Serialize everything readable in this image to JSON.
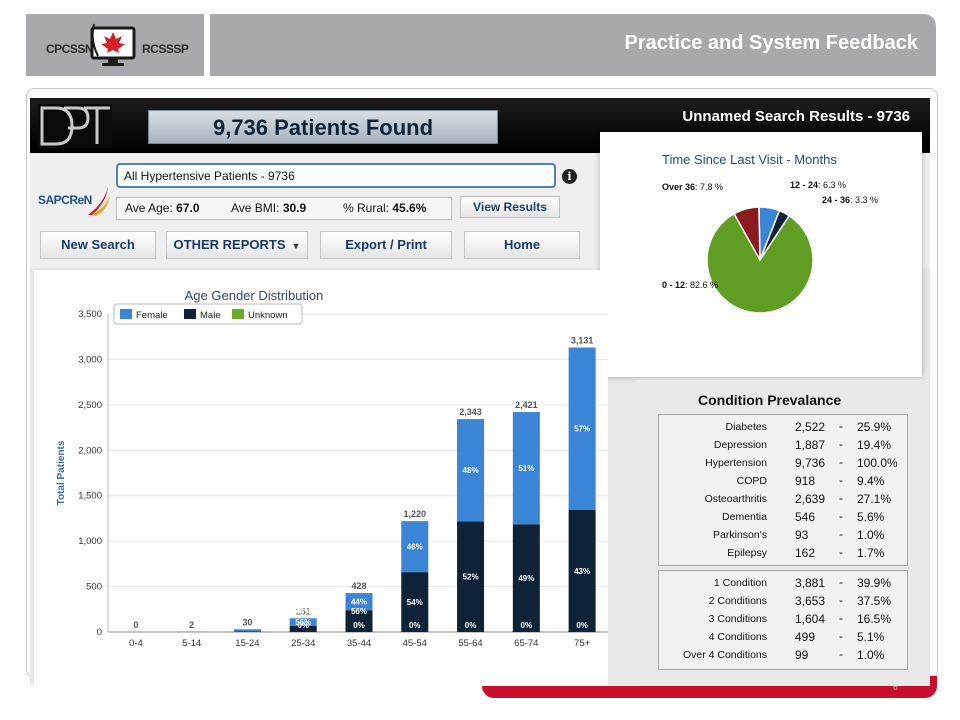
{
  "slide": {
    "logo_left": "CPCSSN",
    "logo_right": "RCSSSP",
    "title": "Practice and System Feedback",
    "page_number": "6"
  },
  "app": {
    "logo": "DPT",
    "patients_found": "9,736 Patients Found",
    "results_title": "Unnamed Search Results - 9736",
    "partner_logo": "SAPCReN",
    "search": {
      "value": "All Hypertensive Patients - 9736"
    },
    "stats": {
      "ave_age_label": "Ave Age:",
      "ave_age": "67.0",
      "ave_bmi_label": "Ave BMI:",
      "ave_bmi": "30.9",
      "rural_label": "% Rural:",
      "rural": "45.6%"
    },
    "buttons": {
      "view_results": "View Results",
      "new_search": "New Search",
      "other_reports": "OTHER REPORTS",
      "export_print": "Export / Print",
      "home": "Home"
    },
    "colors": {
      "female": "#3a85d6",
      "male": "#0e2238",
      "unknown": "#6cab2a",
      "over36": "#8b1a1f"
    }
  },
  "pie": {
    "title": "Time Since Last Visit - Months",
    "slices": [
      {
        "label": "0 - 12",
        "value": 82.6,
        "text": "82.6 %",
        "color": "#5f9e22"
      },
      {
        "label": "12 - 24",
        "value": 6.3,
        "text": "6.3 %",
        "color": "#3a85d6"
      },
      {
        "label": "24 - 36",
        "value": 3.3,
        "text": "3.3 %",
        "color": "#0e2238"
      },
      {
        "label": "Over 36",
        "value": 7.8,
        "text": "7.8 %",
        "color": "#8b1a1f"
      }
    ]
  },
  "conditions": {
    "title": "Condition Prevalance",
    "rows": [
      {
        "name": "Diabetes",
        "count": "2,522",
        "pct": "25.9%"
      },
      {
        "name": "Depression",
        "count": "1,887",
        "pct": "19.4%"
      },
      {
        "name": "Hypertension",
        "count": "9,736",
        "pct": "100.0%"
      },
      {
        "name": "COPD",
        "count": "918",
        "pct": "9.4%"
      },
      {
        "name": "Osteoarthritis",
        "count": "2,639",
        "pct": "27.1%"
      },
      {
        "name": "Dementia",
        "count": "546",
        "pct": "5.6%"
      },
      {
        "name": "Parkinson's",
        "count": "93",
        "pct": "1.0%"
      },
      {
        "name": "Epilepsy",
        "count": "162",
        "pct": "1.7%"
      }
    ],
    "multi_rows": [
      {
        "name": "1 Condition",
        "count": "3,881",
        "pct": "39.9%"
      },
      {
        "name": "2 Conditions",
        "count": "3,653",
        "pct": "37.5%"
      },
      {
        "name": "3 Conditions",
        "count": "1,604",
        "pct": "16.5%"
      },
      {
        "name": "4 Conditions",
        "count": "499",
        "pct": "5.1%"
      },
      {
        "name": "Over 4 Conditions",
        "count": "99",
        "pct": "1.0%"
      }
    ],
    "dash": "-"
  },
  "chart_data": {
    "type": "bar",
    "title": "Age Gender Distribution",
    "ylabel": "Total Patients",
    "xlabel": "",
    "ylim": [
      0,
      3500
    ],
    "yticks": [
      "0",
      "500",
      "1,000",
      "1,500",
      "2,000",
      "2,500",
      "3,000",
      "3,500"
    ],
    "categories": [
      "0-4",
      "5-14",
      "15-24",
      "25-34",
      "35-44",
      "45-54",
      "55-64",
      "65-74",
      "75+"
    ],
    "totals": [
      0,
      2,
      30,
      151,
      428,
      1220,
      2343,
      2421,
      3131
    ],
    "total_labels": [
      "0",
      "2",
      "30",
      "151",
      "428",
      "1,220",
      "2,343",
      "2,421",
      "3,131"
    ],
    "legend": [
      "Female",
      "Male",
      "Unknown"
    ],
    "legend_position": "top-left",
    "series": [
      {
        "name": "Female",
        "values": [
          0,
          1,
          24,
          85,
          188,
          561,
          1125,
          1235,
          1785
        ],
        "labels": [
          "",
          "",
          "",
          "56%",
          "44%",
          "46%",
          "48%",
          "51%",
          "57%"
        ]
      },
      {
        "name": "Male",
        "values": [
          0,
          1,
          6,
          66,
          240,
          659,
          1218,
          1186,
          1346
        ],
        "labels": [
          "",
          "",
          "",
          "44%",
          "56%",
          "54%",
          "52%",
          "49%",
          "43%"
        ]
      },
      {
        "name": "Unknown",
        "values": [
          0,
          0,
          0,
          0,
          0,
          0,
          0,
          0,
          0
        ],
        "labels": [
          "",
          "",
          "",
          "0%",
          "0%",
          "0%",
          "0%",
          "0%",
          "0%"
        ]
      }
    ]
  }
}
